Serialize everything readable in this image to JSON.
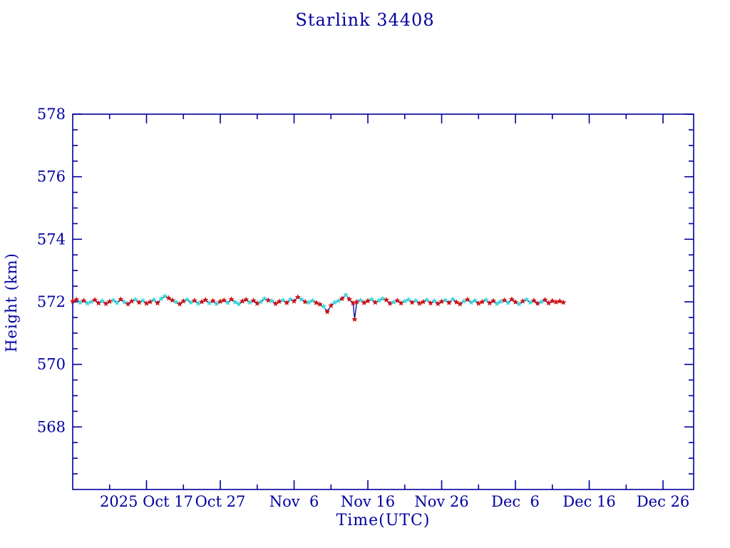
{
  "colors": {
    "axis": "#0000A0",
    "line": "#0000A0",
    "red_marker": "#CC1111",
    "cyan_marker": "#3FD6D6",
    "background": "#FFFFFF"
  },
  "chart_data": {
    "type": "line",
    "title": "Starlink 34408",
    "xlabel": "Time(UTC)",
    "ylabel": "Height (km)",
    "x_unit": "days since 2025 Oct 7",
    "xlim": [
      0,
      84.15
    ],
    "ylim": [
      566,
      578
    ],
    "grid": false,
    "legend": "none",
    "y_major_ticks": [
      568,
      570,
      572,
      574,
      576,
      578
    ],
    "y_minor_step": 0.5,
    "x_major_ticks": [
      {
        "d": 10,
        "label": "2025 Oct 17"
      },
      {
        "d": 20,
        "label": "Oct 27"
      },
      {
        "d": 30,
        "label": "Nov  6"
      },
      {
        "d": 40,
        "label": "Nov 16"
      },
      {
        "d": 50,
        "label": "Nov 26"
      },
      {
        "d": 60,
        "label": "Dec  6"
      },
      {
        "d": 70,
        "label": "Dec 16"
      },
      {
        "d": 80,
        "label": "Dec 26"
      }
    ],
    "x_minor_ticks": [
      5,
      15,
      25,
      35,
      45,
      55,
      65,
      75
    ],
    "series_legend": [
      {
        "name": "height-red-markers",
        "marker": "star",
        "color": "#CC1111"
      },
      {
        "name": "height-cyan-markers",
        "marker": "star",
        "color": "#3FD6D6"
      },
      {
        "name": "height-line",
        "marker": "none",
        "color": "#0000A0"
      }
    ],
    "points": [
      [
        0,
        572.02,
        "r"
      ],
      [
        0.5,
        572.07,
        "r"
      ],
      [
        1,
        571.98,
        "c"
      ],
      [
        1.5,
        572.04,
        "r"
      ],
      [
        2,
        571.95,
        "c"
      ],
      [
        2.5,
        572,
        "c"
      ],
      [
        3,
        572.06,
        "r"
      ],
      [
        3.5,
        571.96,
        "r"
      ],
      [
        4,
        572.03,
        "c"
      ],
      [
        4.5,
        571.94,
        "r"
      ],
      [
        5,
        572.01,
        "r"
      ],
      [
        5.5,
        572.05,
        "c"
      ],
      [
        6,
        571.97,
        "c"
      ],
      [
        6.5,
        572.08,
        "r"
      ],
      [
        7,
        571.99,
        "c"
      ],
      [
        7.5,
        571.93,
        "r"
      ],
      [
        8,
        572.02,
        "r"
      ],
      [
        8.5,
        572.07,
        "c"
      ],
      [
        9,
        571.98,
        "r"
      ],
      [
        9.5,
        572.04,
        "c"
      ],
      [
        10,
        571.95,
        "r"
      ],
      [
        10.5,
        572,
        "r"
      ],
      [
        11,
        572.06,
        "c"
      ],
      [
        11.5,
        571.96,
        "r"
      ],
      [
        12,
        572.1,
        "c"
      ],
      [
        12.5,
        572.18,
        "c"
      ],
      [
        13,
        572.12,
        "r"
      ],
      [
        13.5,
        572.05,
        "r"
      ],
      [
        14,
        571.99,
        "c"
      ],
      [
        14.5,
        571.93,
        "r"
      ],
      [
        15,
        572.02,
        "r"
      ],
      [
        15.5,
        572.07,
        "c"
      ],
      [
        16,
        571.98,
        "c"
      ],
      [
        16.5,
        572.04,
        "r"
      ],
      [
        17,
        571.95,
        "c"
      ],
      [
        17.5,
        572,
        "r"
      ],
      [
        18,
        572.06,
        "r"
      ],
      [
        18.5,
        571.96,
        "c"
      ],
      [
        19,
        572.03,
        "r"
      ],
      [
        19.5,
        571.94,
        "c"
      ],
      [
        20,
        572.01,
        "r"
      ],
      [
        20.5,
        572.05,
        "r"
      ],
      [
        21,
        571.97,
        "c"
      ],
      [
        21.5,
        572.08,
        "r"
      ],
      [
        22,
        571.99,
        "c"
      ],
      [
        22.5,
        571.93,
        "c"
      ],
      [
        23,
        572.02,
        "r"
      ],
      [
        23.5,
        572.07,
        "r"
      ],
      [
        24,
        571.98,
        "c"
      ],
      [
        24.5,
        572.04,
        "r"
      ],
      [
        25,
        571.95,
        "r"
      ],
      [
        25.5,
        572,
        "c"
      ],
      [
        26,
        572.1,
        "c"
      ],
      [
        26.5,
        572.05,
        "r"
      ],
      [
        27,
        572.03,
        "c"
      ],
      [
        27.5,
        571.94,
        "r"
      ],
      [
        28,
        572.01,
        "r"
      ],
      [
        28.5,
        572.05,
        "c"
      ],
      [
        29,
        571.97,
        "r"
      ],
      [
        29.5,
        572.08,
        "c"
      ],
      [
        30,
        572.02,
        "r"
      ],
      [
        30.5,
        572.15,
        "r"
      ],
      [
        31,
        572.08,
        "c"
      ],
      [
        31.5,
        572,
        "r"
      ],
      [
        32,
        571.98,
        "c"
      ],
      [
        32.5,
        572.04,
        "c"
      ],
      [
        33,
        571.97,
        "r"
      ],
      [
        33.5,
        571.92,
        "r"
      ],
      [
        34,
        571.85,
        "c"
      ],
      [
        34.5,
        571.68,
        "r"
      ],
      [
        35,
        571.88,
        "r"
      ],
      [
        35.5,
        571.98,
        "c"
      ],
      [
        36,
        572.03,
        "c"
      ],
      [
        36.5,
        572.1,
        "r"
      ],
      [
        37,
        572.22,
        "c"
      ],
      [
        37.5,
        572.08,
        "r"
      ],
      [
        38,
        571.96,
        "r"
      ],
      [
        38.2,
        571.44,
        "r"
      ],
      [
        38.5,
        572,
        "r"
      ],
      [
        39,
        572.05,
        "c"
      ],
      [
        39.5,
        571.97,
        "r"
      ],
      [
        40,
        572.03,
        "r"
      ],
      [
        40.5,
        572.08,
        "c"
      ],
      [
        41,
        571.98,
        "r"
      ],
      [
        41.5,
        572.04,
        "c"
      ],
      [
        42,
        572.1,
        "c"
      ],
      [
        42.5,
        572.06,
        "r"
      ],
      [
        43,
        571.95,
        "r"
      ],
      [
        43.5,
        571.99,
        "c"
      ],
      [
        44,
        572.04,
        "r"
      ],
      [
        44.5,
        571.96,
        "r"
      ],
      [
        45,
        572.02,
        "c"
      ],
      [
        45.5,
        572.07,
        "c"
      ],
      [
        46,
        571.98,
        "r"
      ],
      [
        46.5,
        572.04,
        "c"
      ],
      [
        47,
        571.95,
        "r"
      ],
      [
        47.5,
        572,
        "r"
      ],
      [
        48,
        572.06,
        "c"
      ],
      [
        48.5,
        571.96,
        "r"
      ],
      [
        49,
        572.03,
        "c"
      ],
      [
        49.5,
        571.94,
        "r"
      ],
      [
        50,
        572.01,
        "r"
      ],
      [
        50.5,
        572.05,
        "c"
      ],
      [
        51,
        571.97,
        "r"
      ],
      [
        51.5,
        572.08,
        "c"
      ],
      [
        52,
        571.99,
        "r"
      ],
      [
        52.5,
        571.93,
        "r"
      ],
      [
        53,
        572.02,
        "c"
      ],
      [
        53.5,
        572.07,
        "r"
      ],
      [
        54,
        571.98,
        "c"
      ],
      [
        54.5,
        572.04,
        "c"
      ],
      [
        55,
        571.95,
        "r"
      ],
      [
        55.5,
        572,
        "r"
      ],
      [
        56,
        572.06,
        "c"
      ],
      [
        56.5,
        571.96,
        "r"
      ],
      [
        57,
        572.03,
        "r"
      ],
      [
        57.5,
        571.94,
        "c"
      ],
      [
        58,
        572.01,
        "c"
      ],
      [
        58.5,
        572.05,
        "r"
      ],
      [
        59,
        571.97,
        "c"
      ],
      [
        59.5,
        572.08,
        "r"
      ],
      [
        60,
        571.99,
        "r"
      ],
      [
        60.5,
        571.93,
        "c"
      ],
      [
        61,
        572.02,
        "r"
      ],
      [
        61.5,
        572.07,
        "c"
      ],
      [
        62,
        571.98,
        "c"
      ],
      [
        62.5,
        572.04,
        "r"
      ],
      [
        63,
        571.95,
        "r"
      ],
      [
        63.5,
        572,
        "c"
      ],
      [
        64,
        572.06,
        "r"
      ],
      [
        64.5,
        571.96,
        "r"
      ],
      [
        65,
        572.03,
        "r"
      ],
      [
        65.5,
        571.99,
        "r"
      ],
      [
        66,
        572.02,
        "r"
      ],
      [
        66.5,
        571.98,
        "r"
      ]
    ]
  }
}
